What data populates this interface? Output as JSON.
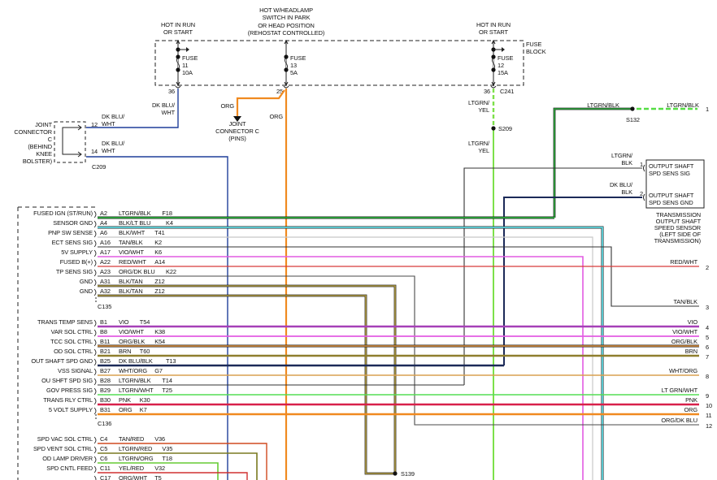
{
  "fuse_block": {
    "label_lines": [
      "FUSE",
      "BLOCK"
    ],
    "connector": "C241",
    "fuses": [
      {
        "feed": [
          "HOT IN RUN",
          "OR START"
        ],
        "name": "FUSE",
        "number": "11",
        "rating": "10A",
        "pin": "36"
      },
      {
        "feed": [
          "HOT W/HEADLAMP",
          "SWITCH IN PARK",
          "OR HEAD POSITION",
          "(REHOSTAT CONTROLLED)"
        ],
        "name": "FUSE",
        "number": "13",
        "rating": "5A",
        "pin": "25"
      },
      {
        "feed": [
          "HOT IN RUN",
          "OR START"
        ],
        "name": "FUSE",
        "number": "12",
        "rating": "15A",
        "pin": "36"
      }
    ]
  },
  "fuse11_wire": [
    "DK BLU/",
    "WHT"
  ],
  "fuse13_wires": {
    "branch": "ORG",
    "main": "ORG",
    "joint_label": [
      "JOINT",
      "CONNECTOR C",
      "(PINS)"
    ]
  },
  "fuse12_wire": {
    "upper": [
      "LTGRN/",
      "YEL"
    ],
    "lower": [
      "LTGRN/",
      "YEL"
    ],
    "splice": "S209"
  },
  "joint_connector": {
    "label_lines": [
      "JOINT",
      "CONNECTOR",
      "C",
      "(BEHIND",
      "KNEE",
      "BOLSTER)"
    ],
    "connector": "C209",
    "pins": [
      {
        "pin": "12",
        "wire": [
          "DK BLU/",
          "WHT"
        ]
      },
      {
        "pin": "14",
        "wire": [
          "DK BLU/",
          "WHT"
        ]
      }
    ]
  },
  "module": {
    "connectors": [
      {
        "name": "C135",
        "rows": [
          {
            "signal": "FUSED IGN (ST/RUN)",
            "pin": "A2",
            "wire": "LTGRN/BLK",
            "code": "F18"
          },
          {
            "signal": "SENSOR GND",
            "pin": "A4",
            "wire": "BLK/LT BLU",
            "code": "K4"
          },
          {
            "signal": "PNP SW SENSE",
            "pin": "A6",
            "wire": "BLK/WHT",
            "code": "T41"
          },
          {
            "signal": "ECT SENS SIG",
            "pin": "A16",
            "wire": "TAN/BLK",
            "code": "K2"
          },
          {
            "signal": "5V SUPPLY",
            "pin": "A17",
            "wire": "VIO/WHT",
            "code": "K6"
          },
          {
            "signal": "FUSED B(+)",
            "pin": "A22",
            "wire": "RED/WHT",
            "code": "A14"
          },
          {
            "signal": "TP SENS SIG",
            "pin": "A23",
            "wire": "ORG/DK BLU",
            "code": "K22"
          },
          {
            "signal": "GND",
            "pin": "A31",
            "wire": "BLK/TAN",
            "code": "Z12"
          },
          {
            "signal": "GND",
            "pin": "A32",
            "wire": "BLK/TAN",
            "code": "Z12"
          }
        ]
      },
      {
        "name": "C136",
        "rows": [
          {
            "signal": "TRANS TEMP SENS",
            "pin": "B1",
            "wire": "VIO",
            "code": "T54"
          },
          {
            "signal": "VAR SOL CTRL",
            "pin": "B8",
            "wire": "VIO/WHT",
            "code": "K38"
          },
          {
            "signal": "TCC SOL CTRL",
            "pin": "B11",
            "wire": "ORG/BLK",
            "code": "K54"
          },
          {
            "signal": "OD SOL CTRL",
            "pin": "B21",
            "wire": "BRN",
            "code": "T60"
          },
          {
            "signal": "OUT SHAFT SPD GND",
            "pin": "B25",
            "wire": "DK BLU/BLK",
            "code": "T13"
          },
          {
            "signal": "VSS SIGNAL",
            "pin": "B27",
            "wire": "WHT/ORG",
            "code": "G7"
          },
          {
            "signal": "OU SHFT SPD SIG",
            "pin": "B28",
            "wire": "LTGRN/BLK",
            "code": "T14"
          },
          {
            "signal": "GOV PRESS SIG",
            "pin": "B29",
            "wire": "LTGRN/WHT",
            "code": "T25"
          },
          {
            "signal": "TRANS RLY CTRL",
            "pin": "B30",
            "wire": "PNK",
            "code": "K30"
          },
          {
            "signal": "5 VOLT SUPPLY",
            "pin": "B31",
            "wire": "ORG",
            "code": "K7"
          }
        ]
      },
      {
        "name": "",
        "rows": [
          {
            "signal": "SPD VAC SOL CTRL",
            "pin": "C4",
            "wire": "TAN/RED",
            "code": "V36"
          },
          {
            "signal": "SPD VENT SOL CTRL",
            "pin": "C5",
            "wire": "LTGRN/RED",
            "code": "V35"
          },
          {
            "signal": "OD LAMP DRIVER",
            "pin": "C6",
            "wire": "LTGRN/ORG",
            "code": "T18"
          },
          {
            "signal": "SPD CNTL FEED",
            "pin": "C11",
            "wire": "YEL/RED",
            "code": "V32"
          },
          {
            "signal": "",
            "pin": "C17",
            "wire": "ORG/WHT",
            "code": "T5"
          }
        ]
      }
    ]
  },
  "splices": {
    "s132": "S132",
    "s139": "S139"
  },
  "s132_wires": {
    "left": "LTGRN/BLK",
    "right": "LTGRN/BLK"
  },
  "sensor": {
    "pins": [
      {
        "pin": "1",
        "wire": [
          "LTGRN/",
          "BLK"
        ],
        "function": [
          "OUTPUT SHAFT",
          "SPD SENS SIG"
        ]
      },
      {
        "pin": "2",
        "wire": [
          "DK BLU/",
          "BLK"
        ],
        "function": [
          "OUTPUT SHAFT",
          "SPD SENS GND"
        ]
      }
    ],
    "caption": [
      "TRANSMISSION",
      "OUTPUT SHAFT",
      "SPEED SENSOR",
      "(LEFT SIDE OF",
      "TRANSMISSION)"
    ]
  },
  "terminals": [
    {
      "pin": "1",
      "wire": "LTGRN/BLK"
    },
    {
      "pin": "2",
      "wire": "RED/WHT"
    },
    {
      "pin": "3",
      "wire": "TAN/BLK"
    },
    {
      "pin": "4",
      "wire": "VIO"
    },
    {
      "pin": "5",
      "wire": "VIO/WHT"
    },
    {
      "pin": "6",
      "wire": "ORG/BLK"
    },
    {
      "pin": "7",
      "wire": "BRN"
    },
    {
      "pin": "8",
      "wire": "WHT/ORG"
    },
    {
      "pin": "9",
      "wire": "LT GRN/WHT"
    },
    {
      "pin": "10",
      "wire": "PNK"
    },
    {
      "pin": "11",
      "wire": "ORG"
    },
    {
      "pin": "12",
      "wire": "ORG/DK BLU"
    }
  ],
  "wire_colors": {
    "dk_blu_wht": "#1f3f9a",
    "org": "#f08a20",
    "ltgrn_yel": "#7de04a",
    "ltgrn_blk": "#2aa83a",
    "blk_lt_blu": "#5fd8e0",
    "blk_wht": "#c8c8c8",
    "tan_blk": "#333333",
    "vio_wht": "#e25ce2",
    "red_wht": "#d83a3a",
    "org_dk_blu": "#4a4a4a",
    "blk_tan": "#b09a40",
    "vio": "#a640b8",
    "org_blk": "#c8843a",
    "brn": "#8f7e2e",
    "dk_blu_blk": "#1c2a58",
    "wht_org": "#d8a050",
    "ltgrn_wht": "#55dd55",
    "pnk": "#d8204a",
    "tan_red": "#d04a20",
    "ltgrn_red": "#7a7a20",
    "ltgrn_org": "#66cc33",
    "yel_red": "#d03030",
    "org_wht": "#e08a50"
  }
}
